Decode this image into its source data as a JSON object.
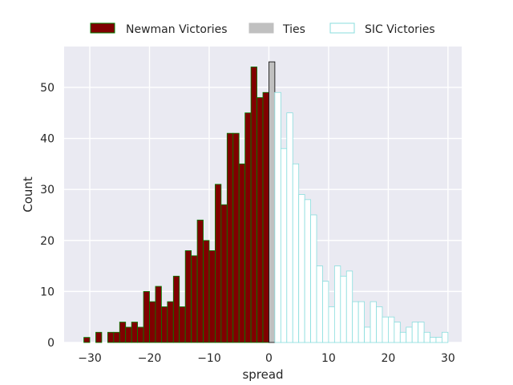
{
  "chart_data": {
    "type": "bar",
    "subtype": "histogram",
    "xlabel": "spread",
    "ylabel": "Count",
    "xlim": [
      -34.3,
      32.3
    ],
    "ylim": [
      0,
      58
    ],
    "xticks": [
      -30,
      -20,
      -10,
      0,
      10,
      20,
      30
    ],
    "yticks": [
      0,
      10,
      20,
      30,
      40,
      50
    ],
    "grid": true,
    "legend_placement": "top-center",
    "colors": {
      "background": "#eaeaf2",
      "grid": "#ffffff",
      "newman_fill": "#800000",
      "newman_edge": "#008000",
      "ties_fill": "#c0c0c0",
      "ties_edge": "#000000",
      "sic_fill": "#ffffff",
      "sic_edge": "#88dddd"
    },
    "series": [
      {
        "name": "Newman Victories",
        "bins": [
          {
            "x": -32,
            "count": 0
          },
          {
            "x": -31,
            "count": 1
          },
          {
            "x": -30,
            "count": 0
          },
          {
            "x": -29,
            "count": 2
          },
          {
            "x": -28,
            "count": 0
          },
          {
            "x": -27,
            "count": 2
          },
          {
            "x": -26,
            "count": 2
          },
          {
            "x": -25,
            "count": 4
          },
          {
            "x": -24,
            "count": 3
          },
          {
            "x": -23,
            "count": 4
          },
          {
            "x": -22,
            "count": 3
          },
          {
            "x": -21,
            "count": 10
          },
          {
            "x": -20,
            "count": 8
          },
          {
            "x": -19,
            "count": 11
          },
          {
            "x": -18,
            "count": 7
          },
          {
            "x": -17,
            "count": 8
          },
          {
            "x": -16,
            "count": 13
          },
          {
            "x": -15,
            "count": 7
          },
          {
            "x": -14,
            "count": 18
          },
          {
            "x": -13,
            "count": 17
          },
          {
            "x": -12,
            "count": 24
          },
          {
            "x": -11,
            "count": 20
          },
          {
            "x": -10,
            "count": 18
          },
          {
            "x": -9,
            "count": 31
          },
          {
            "x": -8,
            "count": 27
          },
          {
            "x": -7,
            "count": 41
          },
          {
            "x": -6,
            "count": 41
          },
          {
            "x": -5,
            "count": 35
          },
          {
            "x": -4,
            "count": 45
          },
          {
            "x": -3,
            "count": 54
          },
          {
            "x": -2,
            "count": 48
          },
          {
            "x": -1,
            "count": 49
          }
        ]
      },
      {
        "name": "Ties",
        "bins": [
          {
            "x": 0,
            "count": 55
          }
        ]
      },
      {
        "name": "SIC Victories",
        "bins": [
          {
            "x": 1,
            "count": 49
          },
          {
            "x": 2,
            "count": 38
          },
          {
            "x": 3,
            "count": 45
          },
          {
            "x": 4,
            "count": 35
          },
          {
            "x": 5,
            "count": 29
          },
          {
            "x": 6,
            "count": 28
          },
          {
            "x": 7,
            "count": 25
          },
          {
            "x": 8,
            "count": 15
          },
          {
            "x": 9,
            "count": 12
          },
          {
            "x": 10,
            "count": 7
          },
          {
            "x": 11,
            "count": 15
          },
          {
            "x": 12,
            "count": 13
          },
          {
            "x": 13,
            "count": 14
          },
          {
            "x": 14,
            "count": 8
          },
          {
            "x": 15,
            "count": 8
          },
          {
            "x": 16,
            "count": 3
          },
          {
            "x": 17,
            "count": 8
          },
          {
            "x": 18,
            "count": 7
          },
          {
            "x": 19,
            "count": 5
          },
          {
            "x": 20,
            "count": 5
          },
          {
            "x": 21,
            "count": 4
          },
          {
            "x": 22,
            "count": 2
          },
          {
            "x": 23,
            "count": 3
          },
          {
            "x": 24,
            "count": 4
          },
          {
            "x": 25,
            "count": 4
          },
          {
            "x": 26,
            "count": 2
          },
          {
            "x": 27,
            "count": 1
          },
          {
            "x": 28,
            "count": 1
          },
          {
            "x": 29,
            "count": 2
          }
        ]
      }
    ]
  }
}
